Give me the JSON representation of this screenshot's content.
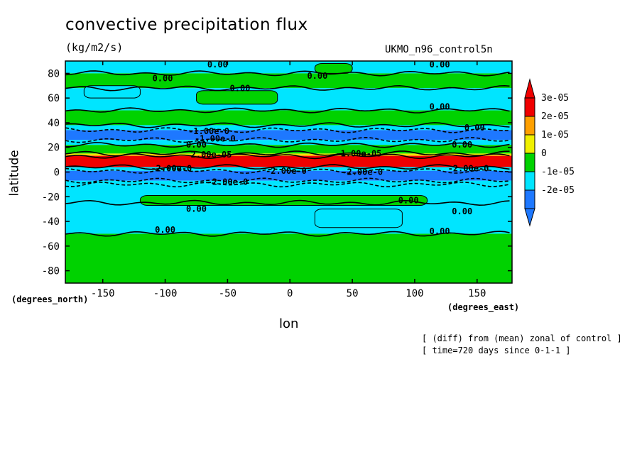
{
  "title": "convective precipitation flux",
  "units": "(kg/m2/s)",
  "run_label": "UKMO_n96_control5n",
  "xlabel": "lon",
  "ylabel": "latitude",
  "x_units": "(degrees_east)",
  "y_units": "(degrees_north)",
  "notes": [
    "[ (diff) from (mean) zonal of control ]",
    "[ time=720 days since 0-1-1 ]"
  ],
  "chart_data": {
    "type": "heatmap",
    "title": "convective precipitation flux",
    "xlabel": "lon",
    "ylabel": "latitude",
    "xlim": [
      -180,
      178
    ],
    "ylim": [
      -90,
      90
    ],
    "x_ticks": [
      -150,
      -100,
      -50,
      0,
      50,
      100,
      150
    ],
    "y_ticks": [
      -80,
      -60,
      -40,
      -20,
      0,
      20,
      40,
      60,
      80
    ],
    "colorbar": {
      "levels": [
        -2e-05,
        -1e-05,
        0,
        1e-05,
        2e-05,
        3e-05
      ],
      "tick_labels": [
        "-2e-05",
        "-1e-05",
        "0",
        "1e-05",
        "2e-05",
        "3e-05"
      ],
      "colors": [
        "#1e78ff",
        "#00e5ff",
        "#00d200",
        "#f0f000",
        "#ffa000",
        "#f00000"
      ]
    },
    "zonal_bands": [
      {
        "lat_from": 80,
        "lat_to": 90,
        "color": "#00e5ff"
      },
      {
        "lat_from": 68,
        "lat_to": 80,
        "color": "#00d200"
      },
      {
        "lat_from": 50,
        "lat_to": 68,
        "color": "#00e5ff"
      },
      {
        "lat_from": 38,
        "lat_to": 50,
        "color": "#00d200"
      },
      {
        "lat_from": 34,
        "lat_to": 38,
        "color": "#00e5ff"
      },
      {
        "lat_from": 26,
        "lat_to": 34,
        "color": "#1e78ff"
      },
      {
        "lat_from": 22,
        "lat_to": 26,
        "color": "#00e5ff"
      },
      {
        "lat_from": 15,
        "lat_to": 22,
        "color": "#00d200"
      },
      {
        "lat_from": 14,
        "lat_to": 15,
        "color": "#f0f000"
      },
      {
        "lat_from": 13,
        "lat_to": 14,
        "color": "#ffa000"
      },
      {
        "lat_from": 4,
        "lat_to": 13,
        "color": "#f00000"
      },
      {
        "lat_from": 1,
        "lat_to": 4,
        "color": "#00e5ff"
      },
      {
        "lat_from": -7,
        "lat_to": 1,
        "color": "#1e78ff"
      },
      {
        "lat_from": -10,
        "lat_to": -7,
        "color": "#00e5ff"
      },
      {
        "lat_from": -25,
        "lat_to": -10,
        "color": "#00e5ff"
      },
      {
        "lat_from": -50,
        "lat_to": -25,
        "color": "#00e5ff"
      },
      {
        "lat_from": -90,
        "lat_to": -50,
        "color": "#00d200"
      }
    ],
    "patches": [
      {
        "lon": [
          -120,
          110
        ],
        "lat": [
          -27,
          -19
        ],
        "color": "#00d200"
      },
      {
        "lon": [
          -75,
          -10
        ],
        "lat": [
          55,
          66
        ],
        "color": "#00d200"
      },
      {
        "lon": [
          20,
          50
        ],
        "lat": [
          80,
          88
        ],
        "color": "#00d200"
      },
      {
        "lon": [
          -165,
          -120
        ],
        "lat": [
          60,
          70
        ],
        "color": "#00e5ff"
      },
      {
        "lon": [
          20,
          90
        ],
        "lat": [
          -45,
          -30
        ],
        "color": "#00e5ff"
      }
    ],
    "contour_labels": [
      {
        "text": "0.00",
        "lon": -58,
        "lat": 87
      },
      {
        "text": "0.00",
        "lon": -102,
        "lat": 76
      },
      {
        "text": "0.00",
        "lon": 22,
        "lat": 78
      },
      {
        "text": "0.00",
        "lon": 120,
        "lat": 87
      },
      {
        "text": "0.00",
        "lon": -40,
        "lat": 68
      },
      {
        "text": "0.00",
        "lon": 120,
        "lat": 53
      },
      {
        "text": "0.00",
        "lon": 148,
        "lat": 36
      },
      {
        "text": "-1.00e-0",
        "lon": -65,
        "lat": 33
      },
      {
        "text": "-1.00e-0",
        "lon": -60,
        "lat": 27
      },
      {
        "text": "0.00",
        "lon": -75,
        "lat": 22
      },
      {
        "text": "0.00",
        "lon": 138,
        "lat": 22
      },
      {
        "text": "-1.00e-05",
        "lon": 55,
        "lat": 15
      },
      {
        "text": "2.00e-05",
        "lon": -63,
        "lat": 14
      },
      {
        "text": "-2.00e-0",
        "lon": -95,
        "lat": 3
      },
      {
        "text": "-2.00e-0",
        "lon": -3,
        "lat": 1
      },
      {
        "text": "-2.00e-0",
        "lon": 58,
        "lat": 0
      },
      {
        "text": "-2.00e-0",
        "lon": 143,
        "lat": 3
      },
      {
        "text": "-2.00e-0",
        "lon": -50,
        "lat": -8
      },
      {
        "text": "0.00",
        "lon": 95,
        "lat": -23
      },
      {
        "text": "0.00",
        "lon": -75,
        "lat": -30
      },
      {
        "text": "0.00",
        "lon": 138,
        "lat": -32
      },
      {
        "text": "0.00",
        "lon": -100,
        "lat": -47
      },
      {
        "text": "0.00",
        "lon": 120,
        "lat": -48
      }
    ]
  }
}
